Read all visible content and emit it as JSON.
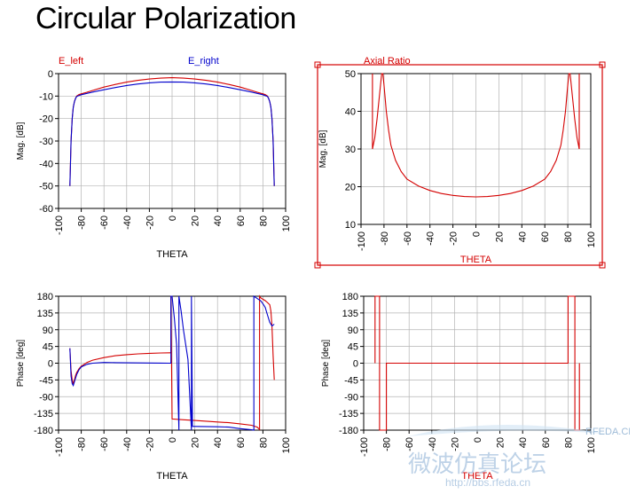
{
  "page": {
    "title": "Circular Polarization"
  },
  "colors": {
    "red": "#d40000",
    "blue": "#0000cc",
    "grid": "#b4b4b4",
    "axes": "#000000"
  },
  "watermark": {
    "text_cn": "微波仿真论坛",
    "url": "http://bbs.rfeda.cn",
    "site": "RFEDA.CN"
  },
  "chart_data": [
    {
      "id": "mag",
      "type": "line",
      "xlabel": "THETA",
      "ylabel": "Mag. [dB]",
      "xlim": [
        -100,
        100
      ],
      "ylim": [
        -60,
        0
      ],
      "xticks": [
        -100,
        -80,
        -60,
        -40,
        -20,
        0,
        20,
        40,
        60,
        80,
        100
      ],
      "yticks": [
        -60,
        -50,
        -40,
        -30,
        -20,
        -10,
        0
      ],
      "grid": true,
      "series": [
        {
          "name": "E_left",
          "color": "#d40000",
          "x": [
            -90,
            -89,
            -88,
            -87,
            -86,
            -85,
            -84,
            -82,
            -80,
            -75,
            -70,
            -60,
            -50,
            -40,
            -30,
            -20,
            -10,
            0,
            10,
            20,
            30,
            40,
            50,
            60,
            70,
            75,
            80,
            82,
            84,
            85,
            86,
            87,
            88,
            89,
            90
          ],
          "y": [
            -50,
            -30,
            -20,
            -15,
            -12.5,
            -11,
            -10,
            -9.3,
            -9,
            -8.3,
            -7.5,
            -6,
            -4.8,
            -3.8,
            -3,
            -2.4,
            -2,
            -1.8,
            -2,
            -2.4,
            -3,
            -3.8,
            -4.8,
            -6,
            -7.5,
            -8.3,
            -9,
            -9.3,
            -10,
            -11,
            -12.5,
            -15,
            -20,
            -30,
            -50
          ]
        },
        {
          "name": "E_right",
          "color": "#0000cc",
          "x": [
            -90,
            -89,
            -88,
            -87,
            -86,
            -85,
            -84,
            -82,
            -80,
            -75,
            -70,
            -60,
            -50,
            -40,
            -30,
            -20,
            -10,
            0,
            10,
            20,
            30,
            40,
            50,
            60,
            70,
            75,
            80,
            82,
            84,
            85,
            86,
            87,
            88,
            89,
            90
          ],
          "y": [
            -50,
            -30,
            -20,
            -15,
            -12.5,
            -11,
            -10.2,
            -9.8,
            -9.4,
            -8.8,
            -8.2,
            -7.2,
            -6.2,
            -5.3,
            -4.6,
            -4.1,
            -3.8,
            -3.7,
            -3.8,
            -4.1,
            -4.6,
            -5.3,
            -6.2,
            -7.2,
            -8.2,
            -8.8,
            -9.4,
            -9.8,
            -10.2,
            -11,
            -12.5,
            -15,
            -20,
            -30,
            -50
          ]
        }
      ]
    },
    {
      "id": "ar",
      "type": "line",
      "title": "Axial Ratio",
      "xlabel": "THETA",
      "ylabel": "Mag. [dB]",
      "xlim": [
        -100,
        100
      ],
      "ylim": [
        10,
        50
      ],
      "xticks": [
        -100,
        -80,
        -60,
        -40,
        -20,
        0,
        20,
        40,
        60,
        80,
        100
      ],
      "yticks": [
        10,
        20,
        30,
        40,
        50
      ],
      "grid": true,
      "series": [
        {
          "name": "Axial Ratio",
          "color": "#d40000",
          "x": [
            -90,
            -90,
            -88,
            -86,
            -84,
            -82,
            -81,
            -80,
            -78,
            -76,
            -74,
            -70,
            -65,
            -60,
            -50,
            -40,
            -30,
            -20,
            -10,
            0,
            10,
            20,
            30,
            40,
            50,
            60,
            65,
            70,
            74,
            76,
            78,
            80,
            81,
            82,
            84,
            86,
            88,
            90,
            90
          ],
          "y": [
            50,
            30,
            33,
            38,
            44,
            50,
            50,
            47,
            40,
            35,
            31,
            27,
            24,
            22,
            20.2,
            19,
            18.2,
            17.7,
            17.4,
            17.3,
            17.4,
            17.7,
            18.2,
            19,
            20.2,
            22,
            24,
            27,
            31,
            35,
            40,
            47,
            50,
            50,
            44,
            38,
            33,
            30,
            50
          ]
        }
      ]
    },
    {
      "id": "phase",
      "type": "line",
      "xlabel": "THETA",
      "ylabel": "Phase [deg]",
      "xlim": [
        -100,
        100
      ],
      "ylim": [
        -180,
        180
      ],
      "xticks": [
        -100,
        -80,
        -60,
        -40,
        -20,
        0,
        20,
        40,
        60,
        80,
        100
      ],
      "yticks": [
        -180,
        -135,
        -90,
        -45,
        0,
        45,
        90,
        135,
        180
      ],
      "grid": true,
      "series": [
        {
          "name": "E_left",
          "color": "#d40000",
          "x": [
            -90,
            -89,
            -88,
            -87,
            -86,
            -85,
            -84,
            -82,
            -80,
            -75,
            -70,
            -60,
            -50,
            -40,
            -30,
            -20,
            -10,
            -2,
            -1,
            -1,
            0,
            10,
            20,
            30,
            40,
            50,
            60,
            70,
            75,
            77,
            77,
            78,
            80,
            82,
            84,
            86,
            87,
            88,
            89,
            90
          ],
          "y": [
            40,
            -20,
            -45,
            -55,
            -45,
            -33,
            -25,
            -15,
            -8,
            2,
            8,
            15,
            20,
            23,
            25,
            26.5,
            27.5,
            28,
            28,
            180,
            -150,
            -152,
            -154,
            -156,
            -158,
            -160,
            -163,
            -167,
            -172,
            -178,
            180,
            176,
            172,
            168,
            163,
            157,
            140,
            100,
            20,
            -45
          ]
        },
        {
          "name": "E_right",
          "color": "#0000cc",
          "x": [
            -90,
            -89,
            -88,
            -87,
            -86,
            -85,
            -84,
            -82,
            -80,
            -75,
            -70,
            -60,
            -50,
            -40,
            -30,
            -20,
            -10,
            -2,
            -1,
            -1,
            0,
            2,
            4,
            6,
            6,
            8,
            10,
            14,
            17,
            17,
            18,
            20,
            40,
            50,
            60,
            70,
            72,
            72,
            73,
            74,
            76,
            78,
            80,
            82,
            84,
            86,
            88,
            90
          ],
          "y": [
            40,
            -35,
            -55,
            -60,
            -50,
            -40,
            -30,
            -18,
            -10,
            -3,
            0,
            2,
            1.5,
            1,
            0.8,
            0.5,
            0.2,
            0,
            0,
            180,
            180,
            120,
            50,
            -180,
            180,
            140,
            90,
            10,
            -180,
            180,
            -170,
            -170,
            -171,
            -172,
            -176,
            -179,
            -180,
            180,
            178,
            176,
            172,
            168,
            160,
            150,
            130,
            110,
            100,
            105
          ]
        }
      ]
    },
    {
      "id": "phase2",
      "type": "line",
      "xlabel": "THETA",
      "ylabel": "Phase [deg]",
      "xlim": [
        -100,
        100
      ],
      "ylim": [
        -180,
        180
      ],
      "xticks": [
        -100,
        -80,
        -60,
        -40,
        -20,
        0,
        20,
        40,
        60,
        80,
        100
      ],
      "yticks": [
        -180,
        -135,
        -90,
        -45,
        0,
        45,
        90,
        135,
        180
      ],
      "grid": true,
      "series": [
        {
          "color": "#d40000",
          "x": [
            -90,
            -90,
            -88,
            -86,
            -86,
            -84,
            -82,
            -80,
            -80,
            -60,
            -40,
            -20,
            0,
            20,
            40,
            60,
            80,
            80,
            82,
            84,
            86,
            86,
            88,
            90,
            90
          ],
          "y": [
            0,
            180,
            180,
            180,
            -180,
            -180,
            -180,
            -180,
            0,
            0,
            0,
            0,
            0,
            0,
            0,
            0,
            0,
            180,
            180,
            180,
            180,
            -180,
            -180,
            -180,
            0
          ]
        }
      ]
    }
  ]
}
